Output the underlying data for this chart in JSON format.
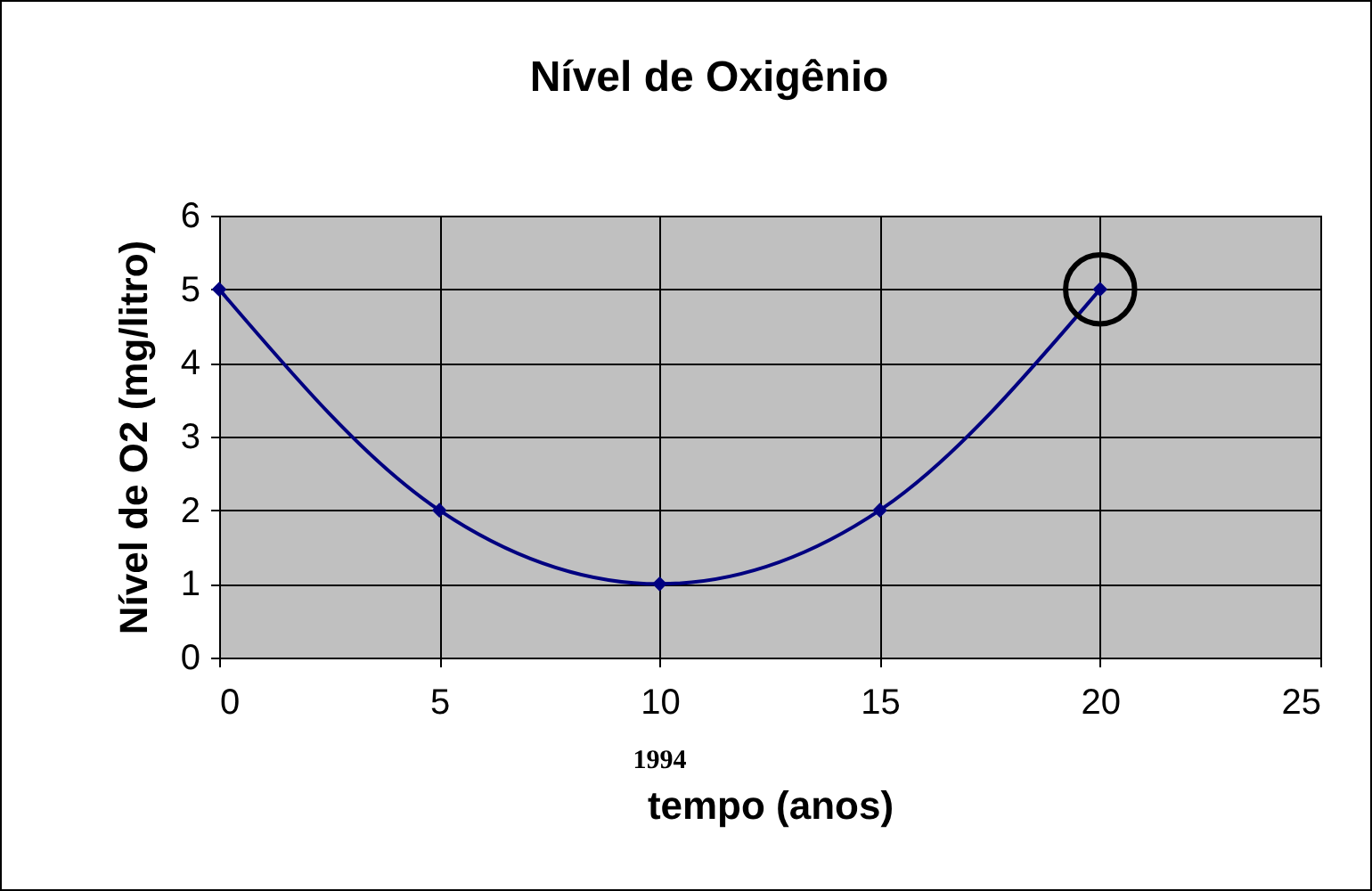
{
  "chart_data": {
    "type": "line",
    "title": "Nível de Oxigênio",
    "xlabel": "tempo (anos)",
    "ylabel": "Nível de O2 (mg/litro)",
    "x": [
      0,
      5,
      10,
      15,
      20
    ],
    "series": [
      {
        "color": "#000080",
        "values": [
          5,
          2,
          1,
          2,
          5
        ]
      },
      {
        "type": "scatter",
        "marker": "circle",
        "color": "#000000",
        "x": [
          20
        ],
        "values": [
          5
        ]
      }
    ],
    "xlim": [
      0,
      25
    ],
    "xticks": [
      0,
      5,
      10,
      15,
      20,
      25
    ],
    "ylim": [
      0,
      6
    ],
    "yticks": [
      0,
      1,
      2,
      3,
      4,
      5,
      6
    ],
    "grid": true,
    "marker": "diamond",
    "line_style": "solid",
    "annotations": [
      "1994"
    ]
  }
}
